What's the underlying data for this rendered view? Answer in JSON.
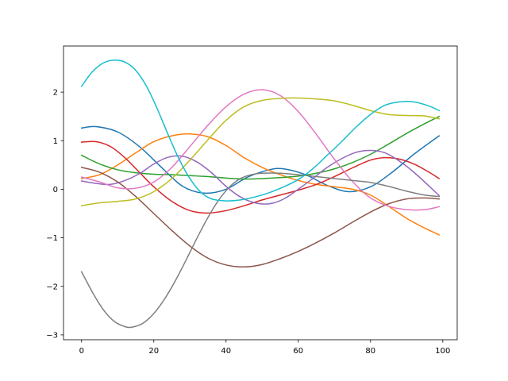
{
  "chart_data": {
    "type": "line",
    "title": "",
    "xlabel": "",
    "ylabel": "",
    "xlim": [
      -5,
      104
    ],
    "ylim": [
      -3.1,
      2.95
    ],
    "xticks": [
      0,
      20,
      40,
      60,
      80,
      100
    ],
    "xtick_labels": [
      "0",
      "20",
      "40",
      "60",
      "80",
      "100"
    ],
    "yticks": [
      -3,
      -2,
      -1,
      0,
      1,
      2
    ],
    "ytick_labels": [
      "−3",
      "−2",
      "−1",
      "0",
      "1",
      "2"
    ],
    "grid": false,
    "legend": "none",
    "series": [
      {
        "color": "#1f77b4",
        "x": [
          0,
          4,
          10,
          16,
          22,
          28,
          34,
          40,
          46,
          52,
          56,
          62,
          68,
          74,
          80,
          86,
          92,
          99
        ],
        "y": [
          1.26,
          1.29,
          1.18,
          0.88,
          0.46,
          0.06,
          -0.08,
          0.0,
          0.25,
          0.4,
          0.42,
          0.3,
          0.08,
          -0.05,
          0.05,
          0.35,
          0.72,
          1.1
        ]
      },
      {
        "color": "#ff7f0e",
        "x": [
          0,
          5,
          10,
          15,
          20,
          25,
          30,
          35,
          40,
          45,
          50,
          55,
          60,
          65,
          70,
          75,
          80,
          85,
          90,
          95,
          99
        ],
        "y": [
          0.22,
          0.3,
          0.5,
          0.75,
          0.98,
          1.1,
          1.14,
          1.08,
          0.9,
          0.65,
          0.45,
          0.3,
          0.18,
          0.1,
          0.05,
          0.0,
          -0.12,
          -0.35,
          -0.6,
          -0.8,
          -0.94
        ]
      },
      {
        "color": "#2ca02c",
        "x": [
          0,
          5,
          10,
          15,
          20,
          25,
          30,
          35,
          40,
          45,
          50,
          55,
          60,
          65,
          70,
          75,
          80,
          85,
          90,
          95,
          99
        ],
        "y": [
          0.7,
          0.52,
          0.4,
          0.34,
          0.31,
          0.3,
          0.28,
          0.26,
          0.23,
          0.21,
          0.22,
          0.24,
          0.27,
          0.33,
          0.42,
          0.55,
          0.72,
          0.93,
          1.15,
          1.35,
          1.5
        ]
      },
      {
        "color": "#d62728",
        "x": [
          0,
          4,
          8,
          12,
          16,
          20,
          25,
          30,
          35,
          40,
          45,
          50,
          55,
          60,
          65,
          70,
          75,
          80,
          84,
          88,
          92,
          96,
          99
        ],
        "y": [
          0.97,
          0.98,
          0.88,
          0.65,
          0.35,
          0.05,
          -0.25,
          -0.44,
          -0.49,
          -0.44,
          -0.34,
          -0.22,
          -0.12,
          -0.02,
          0.1,
          0.26,
          0.44,
          0.6,
          0.65,
          0.62,
          0.52,
          0.36,
          0.22
        ]
      },
      {
        "color": "#9467bd",
        "x": [
          0,
          4,
          8,
          12,
          16,
          20,
          24,
          28,
          32,
          36,
          40,
          44,
          48,
          52,
          56,
          60,
          64,
          68,
          72,
          76,
          80,
          84,
          88,
          92,
          96,
          99
        ],
        "y": [
          0.17,
          0.12,
          0.1,
          0.18,
          0.32,
          0.52,
          0.66,
          0.68,
          0.56,
          0.34,
          0.06,
          -0.16,
          -0.28,
          -0.3,
          -0.2,
          0.0,
          0.22,
          0.45,
          0.63,
          0.76,
          0.8,
          0.75,
          0.58,
          0.35,
          0.08,
          -0.13
        ]
      },
      {
        "color": "#8c564b",
        "x": [
          0,
          5,
          10,
          15,
          20,
          25,
          30,
          35,
          40,
          45,
          50,
          55,
          60,
          65,
          70,
          75,
          80,
          85,
          90,
          95,
          99
        ],
        "y": [
          0.45,
          0.35,
          0.15,
          -0.15,
          -0.5,
          -0.85,
          -1.17,
          -1.42,
          -1.56,
          -1.6,
          -1.55,
          -1.43,
          -1.28,
          -1.1,
          -0.9,
          -0.68,
          -0.47,
          -0.3,
          -0.2,
          -0.18,
          -0.2
        ]
      },
      {
        "color": "#e377c2",
        "x": [
          0,
          5,
          10,
          15,
          20,
          25,
          30,
          35,
          40,
          45,
          50,
          55,
          60,
          65,
          70,
          75,
          80,
          85,
          90,
          95,
          99
        ],
        "y": [
          0.25,
          0.15,
          0.03,
          0.02,
          0.15,
          0.45,
          0.88,
          1.32,
          1.7,
          1.96,
          2.05,
          1.93,
          1.6,
          1.13,
          0.62,
          0.16,
          -0.18,
          -0.35,
          -0.42,
          -0.42,
          -0.36
        ]
      },
      {
        "color": "#7f7f7f",
        "x": [
          0,
          3,
          6,
          9,
          12,
          14,
          17,
          20,
          23,
          26,
          29,
          32,
          35,
          38,
          41,
          44,
          47,
          50,
          55,
          60,
          65,
          70,
          75,
          80,
          85,
          90,
          95,
          99
        ],
        "y": [
          -1.7,
          -2.12,
          -2.48,
          -2.72,
          -2.83,
          -2.84,
          -2.76,
          -2.56,
          -2.26,
          -1.88,
          -1.45,
          -1.0,
          -0.58,
          -0.22,
          0.05,
          0.22,
          0.3,
          0.33,
          0.33,
          0.3,
          0.26,
          0.22,
          0.18,
          0.14,
          0.06,
          -0.04,
          -0.12,
          -0.15
        ]
      },
      {
        "color": "#bcbd22",
        "x": [
          0,
          5,
          10,
          15,
          20,
          25,
          30,
          35,
          40,
          45,
          50,
          55,
          60,
          65,
          70,
          75,
          80,
          85,
          90,
          95,
          99
        ],
        "y": [
          -0.34,
          -0.28,
          -0.25,
          -0.2,
          -0.05,
          0.22,
          0.6,
          1.02,
          1.42,
          1.7,
          1.83,
          1.87,
          1.88,
          1.86,
          1.82,
          1.73,
          1.62,
          1.54,
          1.52,
          1.51,
          1.45
        ]
      },
      {
        "color": "#17becf",
        "x": [
          0,
          3,
          6,
          9,
          12,
          15,
          18,
          21,
          24,
          27,
          30,
          33,
          36,
          40,
          44,
          48,
          52,
          56,
          60,
          64,
          68,
          72,
          76,
          80,
          84,
          88,
          92,
          96,
          99
        ],
        "y": [
          2.12,
          2.42,
          2.6,
          2.66,
          2.62,
          2.45,
          2.12,
          1.65,
          1.12,
          0.62,
          0.22,
          -0.06,
          -0.2,
          -0.24,
          -0.22,
          -0.16,
          -0.07,
          0.05,
          0.2,
          0.42,
          0.7,
          0.98,
          1.28,
          1.54,
          1.73,
          1.8,
          1.8,
          1.72,
          1.62
        ]
      }
    ]
  }
}
